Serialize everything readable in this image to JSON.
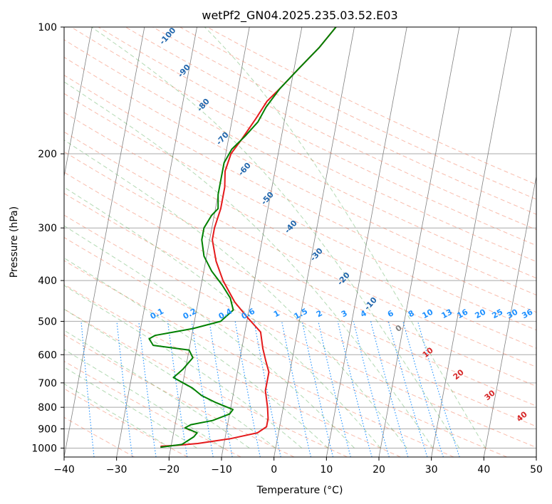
{
  "chart_data": {
    "type": "line",
    "title": "wetPf2_GN04.2025.235.03.52.E03",
    "xlabel": "Temperature (°C)",
    "ylabel": "Pressure (hPa)",
    "xlim": [
      -40,
      50
    ],
    "ylim": [
      1050,
      100
    ],
    "y_scale": "log",
    "grid": true,
    "x_ticks": [
      "−40",
      "−30",
      "−20",
      "−10",
      "0",
      "10",
      "20",
      "30",
      "40",
      "50"
    ],
    "y_ticks": [
      "100",
      "200",
      "300",
      "400",
      "500",
      "600",
      "700",
      "800",
      "900",
      "1000"
    ],
    "series": [
      {
        "role": "temperature",
        "color": "#e41a1c",
        "points": [
          [
            -22,
            990
          ],
          [
            -19,
            985
          ],
          [
            -15,
            975
          ],
          [
            -9,
            950
          ],
          [
            -4,
            920
          ],
          [
            -2.5,
            890
          ],
          [
            -2.5,
            850
          ],
          [
            -3,
            800
          ],
          [
            -4,
            730
          ],
          [
            -4,
            700
          ],
          [
            -4,
            660
          ],
          [
            -5,
            620
          ],
          [
            -6,
            580
          ],
          [
            -7,
            530
          ],
          [
            -10,
            490
          ],
          [
            -13,
            450
          ],
          [
            -16,
            400
          ],
          [
            -18,
            360
          ],
          [
            -19.5,
            320
          ],
          [
            -19.5,
            300
          ],
          [
            -19,
            270
          ],
          [
            -19,
            240
          ],
          [
            -19.5,
            220
          ],
          [
            -19,
            200
          ],
          [
            -17.5,
            185
          ],
          [
            -15.5,
            165
          ],
          [
            -14,
            150
          ],
          [
            -12,
            140
          ],
          [
            -9,
            125
          ],
          [
            -6,
            112
          ],
          [
            -3.5,
            100
          ]
        ]
      },
      {
        "role": "dewpoint",
        "color": "#008000",
        "points": [
          [
            -22,
            995
          ],
          [
            -18,
            980
          ],
          [
            -17,
            960
          ],
          [
            -16,
            940
          ],
          [
            -15.5,
            920
          ],
          [
            -17,
            905
          ],
          [
            -18,
            895
          ],
          [
            -17,
            880
          ],
          [
            -13,
            860
          ],
          [
            -10,
            830
          ],
          [
            -9.5,
            810
          ],
          [
            -13,
            780
          ],
          [
            -16,
            750
          ],
          [
            -18,
            720
          ],
          [
            -22,
            680
          ],
          [
            -20.5,
            650
          ],
          [
            -19,
            610
          ],
          [
            -20,
            585
          ],
          [
            -27,
            570
          ],
          [
            -28,
            550
          ],
          [
            -27,
            540
          ],
          [
            -20,
            520
          ],
          [
            -15,
            500
          ],
          [
            -13,
            470
          ],
          [
            -14,
            440
          ],
          [
            -16,
            410
          ],
          [
            -18.5,
            380
          ],
          [
            -20.5,
            350
          ],
          [
            -21.5,
            320
          ],
          [
            -21.5,
            300
          ],
          [
            -20.5,
            280
          ],
          [
            -19.5,
            270
          ],
          [
            -20,
            250
          ],
          [
            -20,
            230
          ],
          [
            -20,
            210
          ],
          [
            -19,
            195
          ],
          [
            -17,
            182
          ],
          [
            -15,
            168
          ],
          [
            -14,
            155
          ],
          [
            -12,
            140
          ],
          [
            -9,
            125
          ],
          [
            -6,
            112
          ],
          [
            -3.5,
            100
          ]
        ]
      }
    ],
    "mixing_ratio_labels": [
      "0.1",
      "0.2",
      "0.4",
      "0.6",
      "1",
      "1.5",
      "2",
      "3",
      "4",
      "6",
      "8",
      "10",
      "13",
      "16",
      "20",
      "25",
      "30",
      "36"
    ],
    "moist_adiabat_labels": [
      "-100",
      "-90",
      "-80",
      "-70",
      "-60",
      "-50",
      "-40",
      "-30",
      "-20",
      "-10"
    ],
    "dry_adiabat_labels": [
      "0",
      "10",
      "20",
      "30",
      "40"
    ],
    "colors": {
      "temperature": "#e41a1c",
      "dewpoint": "#008000",
      "isotherm": "#808080",
      "isobar": "#a9a9a9",
      "dry_adiabat": "#f47a5a",
      "moist_adiabat": "#55aa55",
      "mixing_ratio": "#1e90ff",
      "moist_label": "#2166ac",
      "dry_label": "#d62728",
      "zero_label": "#808080"
    }
  }
}
